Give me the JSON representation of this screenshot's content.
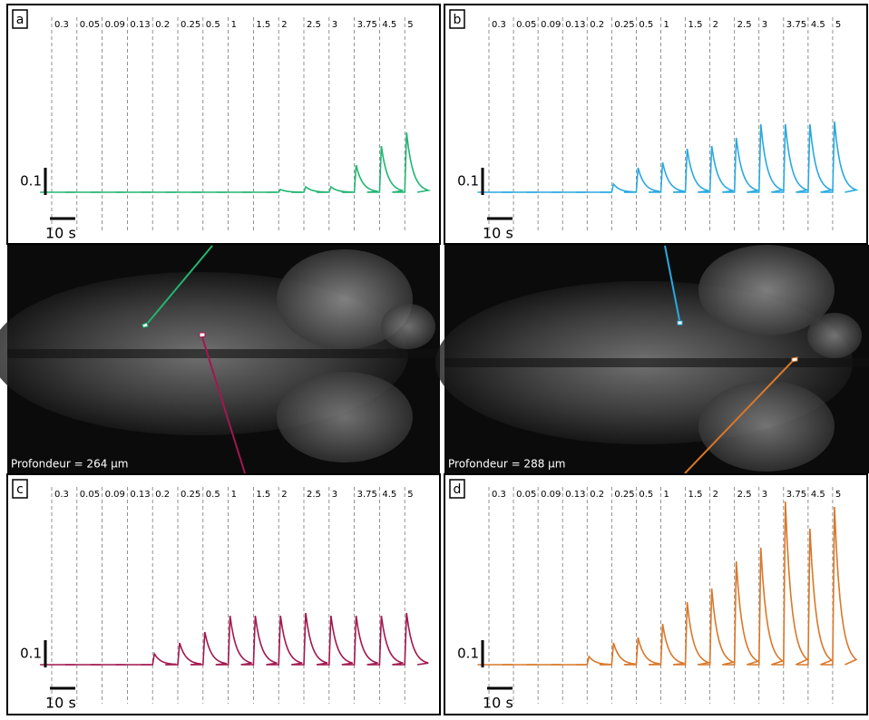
{
  "chart_data": [
    {
      "type": "trace",
      "panel": "a",
      "color": "#22b573",
      "categories": [
        "0.3",
        "0.05",
        "0.09",
        "0.13",
        "0.2",
        "0.25",
        "0.5",
        "1",
        "1.5",
        "2",
        "2.5",
        "3",
        "3.75",
        "4.5",
        "5"
      ],
      "values": [
        0,
        0,
        0,
        0,
        0,
        0,
        0,
        0,
        0,
        0.01,
        0.02,
        0.02,
        0.1,
        0.17,
        0.22
      ],
      "scale_bar": 0.1,
      "time_bar": {
        "value": 10,
        "label": "10 s"
      }
    },
    {
      "type": "trace",
      "panel": "b",
      "color": "#29a9e0",
      "categories": [
        "0.3",
        "0.05",
        "0.09",
        "0.13",
        "0.2",
        "0.25",
        "0.5",
        "1",
        "1.5",
        "2",
        "2.5",
        "3",
        "3.75",
        "4.5",
        "5"
      ],
      "values": [
        0,
        0,
        0,
        0,
        0,
        0.03,
        0.09,
        0.11,
        0.16,
        0.17,
        0.2,
        0.25,
        0.25,
        0.25,
        0.26
      ],
      "scale_bar": 0.1,
      "time_bar": {
        "value": 10,
        "label": "10 s"
      }
    },
    {
      "type": "trace",
      "panel": "c",
      "color": "#a3174f",
      "categories": [
        "0.3",
        "0.05",
        "0.09",
        "0.13",
        "0.2",
        "0.25",
        "0.5",
        "1",
        "1.5",
        "2",
        "2.5",
        "3",
        "3.75",
        "4.5",
        "5"
      ],
      "values": [
        0,
        0,
        0,
        0,
        0.04,
        0.08,
        0.12,
        0.18,
        0.18,
        0.18,
        0.19,
        0.18,
        0.18,
        0.18,
        0.19
      ],
      "scale_bar": 0.1,
      "time_bar": {
        "value": 10,
        "label": "10 s"
      }
    },
    {
      "type": "trace",
      "panel": "d",
      "color": "#d9782a",
      "categories": [
        "0.3",
        "0.05",
        "0.09",
        "0.13",
        "0.2",
        "0.25",
        "0.5",
        "1",
        "1.5",
        "2",
        "2.5",
        "3",
        "3.75",
        "4.5",
        "5"
      ],
      "values": [
        0,
        0,
        0,
        0,
        0.03,
        0.08,
        0.1,
        0.15,
        0.23,
        0.28,
        0.38,
        0.43,
        0.6,
        0.5,
        0.58
      ],
      "scale_bar": 0.1,
      "time_bar": {
        "value": 10,
        "label": "10 s"
      }
    }
  ],
  "images": [
    {
      "label": "Profondeur = 264 µm"
    },
    {
      "label": "Profondeur = 288 µm"
    }
  ]
}
